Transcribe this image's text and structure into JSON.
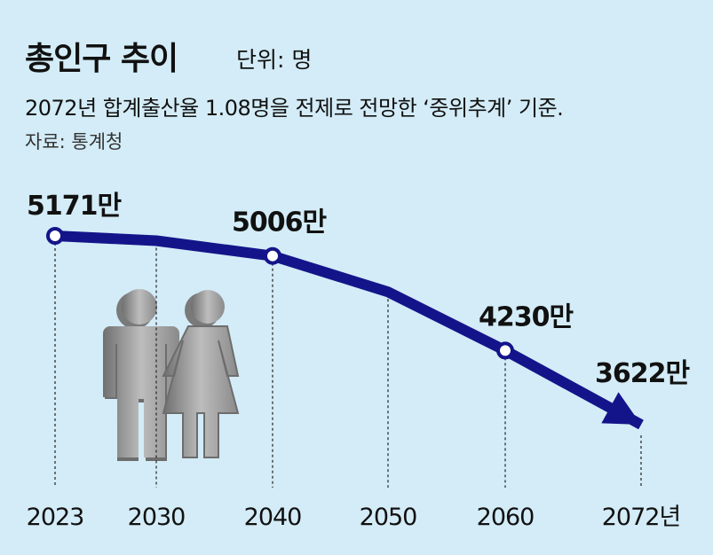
{
  "chart_data": {
    "type": "line",
    "title": "총인구 추이",
    "unit": "단위: 명",
    "subtitle": "2072년 합계출산율 1.08명을 전제로 전망한 ‘중위추계’ 기준.",
    "source": "자료: 통계청",
    "categories": [
      "2023",
      "2030",
      "2040",
      "2050",
      "2060",
      "2072년"
    ],
    "values": [
      5171,
      5131,
      5006,
      4711,
      4230,
      3622
    ],
    "value_labels": [
      "5171만",
      null,
      "5006만",
      null,
      "4230만",
      "3622만"
    ],
    "color": "#14148a"
  }
}
